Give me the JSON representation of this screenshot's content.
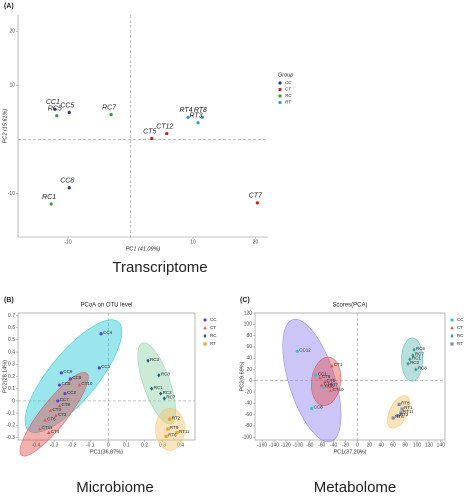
{
  "chart_data": [
    {
      "type": "scatter",
      "panel_label": "(A)",
      "caption": "Transcriptome",
      "x_label": "PC1 (41.09%)",
      "y_label": "PC2 (15.61%)",
      "xlim": [
        -18,
        22
      ],
      "ylim": [
        -18,
        23
      ],
      "xticks": [
        -10,
        10,
        20
      ],
      "yticks": [
        -10,
        10,
        20
      ],
      "zero_lines": true,
      "frame": false,
      "legend": "right",
      "legend_title": "Group",
      "label_style": "italic",
      "series": [
        {
          "name": "CC",
          "color": "#1f3a8a",
          "marker": "circle",
          "labels": [
            "CC1",
            "CC5",
            "CC8"
          ],
          "x": [
            -12.1,
            -9.8,
            -9.8
          ],
          "y": [
            5.6,
            5.0,
            -8.9
          ]
        },
        {
          "name": "CT",
          "color": "#d7191c",
          "marker": "circle",
          "labels": [
            "CT5",
            "CT12",
            "CT7"
          ],
          "x": [
            3.4,
            5.8,
            20.3
          ],
          "y": [
            0.2,
            1.1,
            -11.7
          ]
        },
        {
          "name": "RC",
          "color": "#2ca02c",
          "marker": "circle",
          "labels": [
            "RC5",
            "RC7",
            "RC1"
          ],
          "x": [
            -11.8,
            -3.1,
            -12.7
          ],
          "y": [
            4.4,
            4.6,
            -11.9
          ]
        },
        {
          "name": "RT",
          "color": "#2b9fc0",
          "marker": "circle",
          "labels": [
            "RT4",
            "RT8",
            "RT3"
          ],
          "x": [
            9.2,
            11.5,
            10.8
          ],
          "y": [
            4.1,
            4.1,
            3.1
          ]
        }
      ]
    },
    {
      "type": "scatter",
      "panel_label": "(B)",
      "title": "PCoA on OTU level",
      "caption": "Microbiome",
      "x_label": "PC1(36.87%)",
      "y_label": "PC2(28.14%)",
      "xlim": [
        -0.5,
        0.48
      ],
      "ylim": [
        -0.32,
        0.72
      ],
      "xticks": [
        -0.4,
        -0.3,
        -0.2,
        -0.1,
        0,
        0.1,
        0.2,
        0.3,
        0.4
      ],
      "yticks": [
        -0.3,
        -0.2,
        -0.1,
        0,
        0.1,
        0.2,
        0.3,
        0.4,
        0.5,
        0.6,
        0.7
      ],
      "zero_lines": true,
      "frame": true,
      "legend": "right",
      "ellipses": true,
      "label_style": "normal",
      "series": [
        {
          "name": "CC",
          "color": "#5b3fd6",
          "ellipse_color": "#22c8d8",
          "marker": "circle",
          "labels": [
            "CC4",
            "CC1",
            "CC9",
            "CC5",
            "CC2",
            "CC6",
            "CC7"
          ],
          "x": [
            -0.04,
            -0.05,
            -0.26,
            -0.27,
            -0.24,
            -0.21,
            -0.28
          ],
          "y": [
            0.55,
            0.27,
            0.23,
            0.13,
            0.06,
            0.18,
            0.0
          ]
        },
        {
          "name": "CT",
          "color": "#e0534f",
          "ellipse_color": "#e0534f",
          "marker": "triangle",
          "labels": [
            "CT3",
            "CT6",
            "CT11",
            "CT2",
            "CT8",
            "CT10",
            "CT4"
          ],
          "x": [
            -0.32,
            -0.35,
            -0.38,
            -0.29,
            -0.27,
            -0.16,
            -0.33
          ],
          "y": [
            -0.08,
            -0.16,
            -0.23,
            -0.12,
            -0.04,
            0.13,
            -0.26
          ]
        },
        {
          "name": "RC",
          "color": "#1f5f6b",
          "ellipse_color": "#8fd0a8",
          "marker": "diamond",
          "labels": [
            "RC3",
            "RC8",
            "RC1",
            "RC2",
            "RC7"
          ],
          "x": [
            0.22,
            0.28,
            0.24,
            0.29,
            0.31
          ],
          "y": [
            0.33,
            0.21,
            0.1,
            0.06,
            0.02
          ]
        },
        {
          "name": "RT",
          "color": "#f0a02a",
          "ellipse_color": "#f5c46a",
          "marker": "square",
          "labels": [
            "RT2",
            "RT9",
            "RT11",
            "RT6"
          ],
          "x": [
            0.34,
            0.33,
            0.38,
            0.32
          ],
          "y": [
            -0.15,
            -0.23,
            -0.26,
            -0.29
          ]
        }
      ]
    },
    {
      "type": "scatter",
      "panel_label": "(C)",
      "title": "Scores(PCA)",
      "caption": "Metabolome",
      "x_label": "PC1(37.20%)",
      "y_label": "PC2(9.69%)",
      "xlim": [
        -172,
        147
      ],
      "ylim": [
        -105,
        120
      ],
      "xticks": [
        -160,
        -140,
        -120,
        -100,
        -80,
        -60,
        -40,
        -20,
        0,
        20,
        40,
        60,
        80,
        100,
        120,
        140
      ],
      "yticks": [
        -100,
        -80,
        -60,
        -40,
        -20,
        0,
        20,
        40,
        60,
        80,
        100,
        120
      ],
      "zero_lines": true,
      "frame": true,
      "legend": "right",
      "ellipses": true,
      "label_style": "normal",
      "series": [
        {
          "name": "CC",
          "color": "#2ec4d6",
          "ellipse_color": "#8f7ef0",
          "marker": "circle",
          "labels": [
            "CC12",
            "CC8",
            "CC1",
            "CC5"
          ],
          "x": [
            -101,
            -77,
            -70,
            -58
          ],
          "y": [
            52,
            -49,
            10,
            -12
          ]
        },
        {
          "name": "CT",
          "color": "#e0534f",
          "ellipse_color": "#e0534f",
          "marker": "triangle",
          "labels": [
            "CT1",
            "CT8",
            "CT5",
            "CT4",
            "CT7",
            "CT10"
          ],
          "x": [
            -43,
            -63,
            -55,
            -60,
            -50,
            -45
          ],
          "y": [
            26,
            5,
            -2,
            -8,
            -10,
            -18
          ]
        },
        {
          "name": "RC",
          "color": "#3a9a8a",
          "ellipse_color": "#5fb8b0",
          "marker": "diamond",
          "labels": [
            "RC6",
            "RC7",
            "RC1",
            "RC8",
            "RC3"
          ],
          "x": [
            95,
            93,
            88,
            98,
            85
          ],
          "y": [
            55,
            45,
            38,
            20,
            30
          ]
        },
        {
          "name": "RT",
          "color": "#7a8fb0",
          "ellipse_color": "#f2c060",
          "marker": "square",
          "labels": [
            "RT8",
            "RT1",
            "RT11",
            "RT2",
            "RT6"
          ],
          "x": [
            70,
            75,
            73,
            68,
            60
          ],
          "y": [
            -42,
            -50,
            -57,
            -62,
            -66
          ]
        }
      ]
    }
  ]
}
